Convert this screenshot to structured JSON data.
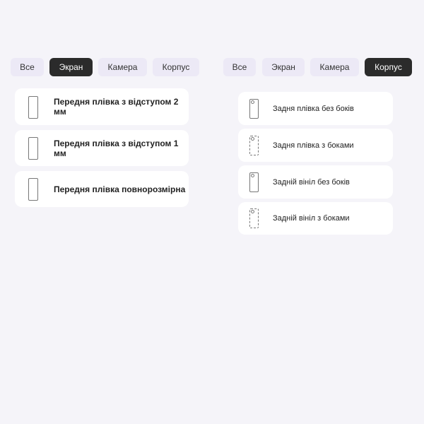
{
  "left": {
    "tabs": [
      {
        "label": "Все"
      },
      {
        "label": "Экран",
        "active": true
      },
      {
        "label": "Камера"
      },
      {
        "label": "Корпус"
      }
    ],
    "items": [
      {
        "label": "Передня плівка з відступом 2 мм",
        "icon": "phone-front-icon"
      },
      {
        "label": "Передня плівка з відступом 1 мм",
        "icon": "phone-front-icon"
      },
      {
        "label": "Передня плівка повнорозмірна",
        "icon": "phone-front-icon"
      }
    ]
  },
  "right": {
    "tabs": [
      {
        "label": "Все"
      },
      {
        "label": "Экран"
      },
      {
        "label": "Камера"
      },
      {
        "label": "Корпус",
        "active": true
      }
    ],
    "items": [
      {
        "label": "Задня плівка без боків",
        "icon": "phone-back-icon"
      },
      {
        "label": "Задня плівка з боками",
        "icon": "phone-back-sides-icon"
      },
      {
        "label": "Задній вініл без боків",
        "icon": "phone-back-icon"
      },
      {
        "label": "Задній вініл з боками",
        "icon": "phone-back-sides-icon"
      }
    ]
  },
  "colors": {
    "background": "#f5f4f9",
    "tab": "#ece9f6",
    "active_tab": "#2b2b2b"
  }
}
